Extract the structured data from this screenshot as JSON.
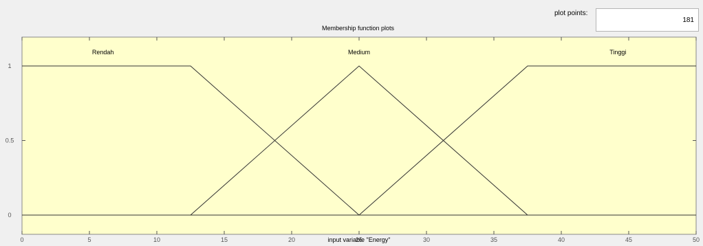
{
  "plot_points": {
    "label": "plot points:",
    "value": "181"
  },
  "chart_data": {
    "type": "line",
    "title": "Membership function plots",
    "xlabel": "input variable \"Energy\"",
    "ylabel": "",
    "xlim": [
      0,
      50
    ],
    "ylim": [
      0,
      1
    ],
    "x_ticks": [
      0,
      5,
      10,
      15,
      20,
      25,
      30,
      35,
      40,
      45,
      50
    ],
    "y_ticks": [
      0,
      0.5,
      1
    ],
    "series": [
      {
        "name": "Rendah",
        "x": [
          0,
          12.5,
          25
        ],
        "y": [
          1,
          1,
          0
        ]
      },
      {
        "name": "Medium",
        "x": [
          12.5,
          25,
          37.5
        ],
        "y": [
          0,
          1,
          0
        ]
      },
      {
        "name": "Tinggi",
        "x": [
          25,
          37.5,
          50
        ],
        "y": [
          0,
          1,
          1
        ]
      }
    ],
    "label_x": [
      6,
      25,
      44.2
    ],
    "colors": {
      "background": "#ffffcc",
      "line": "#333333"
    }
  }
}
